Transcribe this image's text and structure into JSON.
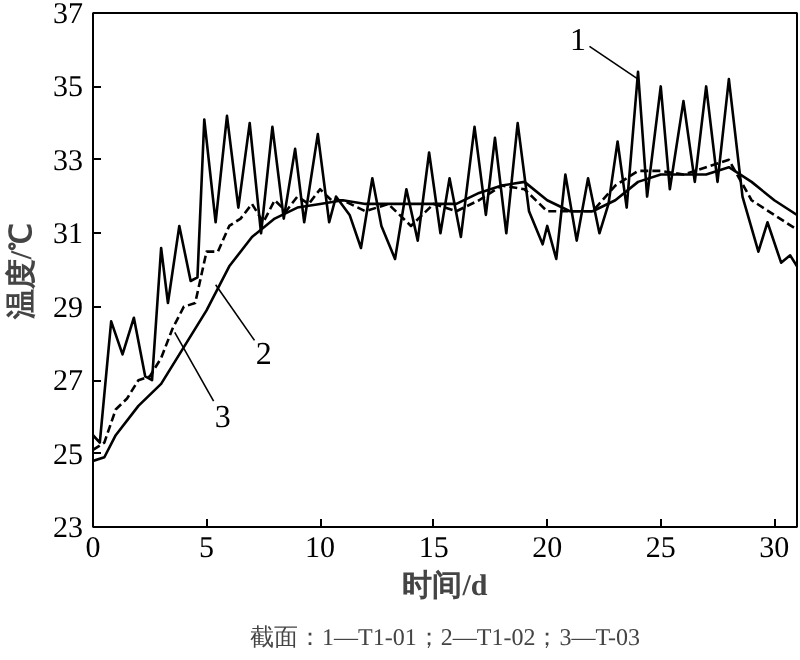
{
  "chart_data": {
    "type": "line",
    "xlabel": "时间/d",
    "ylabel": "温度/℃",
    "xlim": [
      0,
      31
    ],
    "ylim": [
      23,
      37
    ],
    "xticks": [
      0,
      5,
      10,
      15,
      20,
      25,
      30
    ],
    "yticks": [
      23,
      25,
      27,
      29,
      31,
      33,
      35,
      37
    ],
    "grid": false,
    "series": [
      {
        "color": "#000000",
        "line_style": "solid",
        "x": [
          0,
          0.3,
          0.8,
          1.3,
          1.8,
          2.3,
          2.6,
          3.0,
          3.3,
          3.8,
          4.3,
          4.6,
          4.9,
          5.4,
          5.9,
          6.4,
          6.9,
          7.4,
          7.9,
          8.4,
          8.9,
          9.3,
          9.9,
          10.4,
          10.7,
          11.3,
          11.8,
          12.3,
          12.7,
          13.3,
          13.8,
          14.3,
          14.8,
          15.3,
          15.7,
          16.2,
          16.8,
          17.3,
          17.7,
          18.2,
          18.7,
          19.2,
          19.8,
          20.0,
          20.4,
          20.8,
          21.3,
          21.8,
          22.3,
          22.7,
          23.1,
          23.5,
          24.0,
          24.4,
          25.0,
          25.4,
          26.0,
          26.5,
          27.0,
          27.5,
          28.0,
          28.6,
          29.3,
          29.7,
          30.3,
          30.7,
          31.0
        ],
        "values": [
          25.5,
          25.3,
          28.6,
          27.7,
          28.7,
          27.1,
          27.0,
          30.6,
          29.1,
          31.2,
          29.7,
          29.8,
          34.1,
          31.3,
          34.2,
          31.7,
          34.0,
          31.0,
          33.9,
          31.4,
          33.3,
          31.3,
          33.7,
          31.3,
          32.0,
          31.5,
          30.6,
          32.5,
          31.2,
          30.3,
          32.2,
          30.8,
          33.2,
          31.0,
          32.5,
          30.9,
          33.9,
          31.5,
          33.6,
          31.0,
          34.0,
          31.6,
          30.7,
          31.2,
          30.3,
          32.6,
          30.8,
          32.5,
          31.0,
          31.8,
          33.5,
          31.7,
          35.4,
          32.0,
          35.0,
          32.2,
          34.6,
          32.4,
          35.0,
          32.4,
          35.2,
          32.0,
          30.5,
          31.3,
          30.2,
          30.4,
          30.1
        ]
      },
      {
        "color": "#000000",
        "line_style": "dashed",
        "x": [
          0,
          0.5,
          1,
          1.5,
          2,
          2.5,
          3,
          3.5,
          4,
          4.5,
          5,
          5.5,
          6,
          6.5,
          7,
          7.5,
          8,
          8.5,
          9,
          9.5,
          10,
          10.5,
          11,
          12,
          13,
          14,
          15,
          16,
          17,
          18,
          19,
          20,
          21,
          22,
          23,
          24,
          25,
          26,
          27,
          28,
          29,
          30,
          31
        ],
        "values": [
          25.1,
          25.3,
          26.2,
          26.5,
          27.0,
          27.1,
          27.6,
          28.4,
          29.0,
          29.1,
          30.5,
          30.5,
          31.2,
          31.4,
          31.8,
          31.3,
          31.9,
          31.6,
          32.0,
          31.8,
          32.2,
          31.9,
          31.9,
          31.6,
          31.8,
          31.2,
          31.8,
          31.6,
          31.9,
          32.3,
          32.2,
          31.6,
          31.6,
          31.6,
          32.3,
          32.7,
          32.7,
          32.6,
          32.8,
          33.0,
          31.9,
          31.5,
          31.1
        ]
      },
      {
        "color": "#000000",
        "line_style": "solid",
        "x": [
          0,
          0.5,
          1,
          2,
          3,
          4,
          5,
          6,
          7,
          8,
          9,
          10,
          11,
          12,
          13,
          14,
          15,
          16,
          17,
          18,
          19,
          20,
          21,
          22,
          23,
          24,
          25,
          26,
          27,
          28,
          29,
          30,
          31
        ],
        "values": [
          24.8,
          24.9,
          25.5,
          26.3,
          26.9,
          27.9,
          28.9,
          30.1,
          30.9,
          31.4,
          31.7,
          31.8,
          31.9,
          31.8,
          31.8,
          31.8,
          31.8,
          31.8,
          32.1,
          32.3,
          32.4,
          31.9,
          31.6,
          31.6,
          31.9,
          32.4,
          32.6,
          32.6,
          32.6,
          32.8,
          32.4,
          31.9,
          31.5
        ]
      }
    ],
    "annotations": [
      {
        "text": "1",
        "x": 24.0,
        "y": 35.2
      },
      {
        "text": "2",
        "x": 5.4,
        "y": 29.6
      },
      {
        "text": "3",
        "x": 3.6,
        "y": 28.3
      },
      "截面：1—T1-01；2—T1-02；3—T-03"
    ]
  }
}
